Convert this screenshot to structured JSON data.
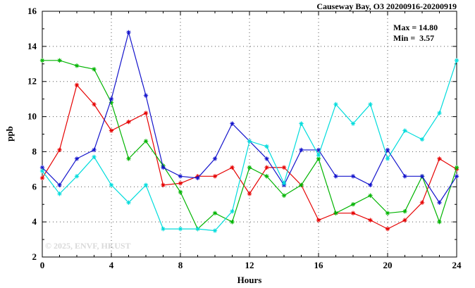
{
  "title": "Causeway Bay, O3 20200916-20200919",
  "annotation": {
    "max_label": "Max = 14.80",
    "min_label": "Min =  3.57"
  },
  "watermark": "© 2025, ENVF, HKUST",
  "chart_data": {
    "type": "line",
    "title": "Causeway Bay, O3 20200916-20200919",
    "xlabel": "Hours",
    "ylabel": "ppb",
    "xlim": [
      0,
      24
    ],
    "ylim": [
      2,
      16
    ],
    "xticks": [
      0,
      4,
      8,
      12,
      16,
      20,
      24
    ],
    "yticks": [
      2,
      4,
      6,
      8,
      10,
      12,
      14,
      16
    ],
    "x_minor_step": 1,
    "y_minor_step": 1,
    "grid": true,
    "legend": "none",
    "marker": "asterisk",
    "stats": {
      "max": 14.8,
      "min": 3.57
    },
    "x": [
      0,
      1,
      2,
      3,
      4,
      5,
      6,
      7,
      8,
      9,
      10,
      11,
      12,
      13,
      14,
      15,
      16,
      17,
      18,
      19,
      20,
      21,
      22,
      23,
      24
    ],
    "series": [
      {
        "name": "red",
        "color": "#e60000",
        "values": [
          6.5,
          8.1,
          11.8,
          10.7,
          9.2,
          9.7,
          10.2,
          6.1,
          6.2,
          6.6,
          6.6,
          7.1,
          5.6,
          7.1,
          7.1,
          6.1,
          4.1,
          4.5,
          4.5,
          4.1,
          3.6,
          4.1,
          5.1,
          7.6,
          7.0
        ]
      },
      {
        "name": "green",
        "color": "#00b400",
        "values": [
          13.2,
          13.2,
          12.9,
          12.7,
          10.8,
          7.6,
          8.6,
          7.2,
          5.7,
          3.6,
          4.5,
          4.0,
          7.1,
          6.6,
          5.5,
          6.1,
          7.6,
          4.5,
          5.0,
          5.5,
          4.5,
          4.6,
          6.6,
          4.0,
          7.1
        ]
      },
      {
        "name": "blue",
        "color": "#1414cc",
        "values": [
          7.1,
          6.1,
          7.6,
          8.1,
          11.0,
          14.8,
          11.2,
          7.1,
          6.6,
          6.5,
          7.6,
          9.6,
          8.6,
          7.6,
          6.1,
          8.1,
          8.1,
          6.6,
          6.6,
          6.1,
          8.1,
          6.6,
          6.6,
          5.1,
          6.6
        ]
      },
      {
        "name": "cyan",
        "color": "#00dcdc",
        "values": [
          6.9,
          5.6,
          6.6,
          7.7,
          6.1,
          5.1,
          6.1,
          3.6,
          3.6,
          3.6,
          3.5,
          4.6,
          8.6,
          8.3,
          6.2,
          9.6,
          7.8,
          10.7,
          9.6,
          10.7,
          7.6,
          9.2,
          8.7,
          10.2,
          13.2
        ]
      }
    ]
  }
}
